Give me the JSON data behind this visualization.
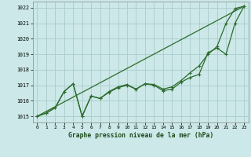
{
  "title": "Graphe pression niveau de la mer (hPa)",
  "bg_color": "#cce8e8",
  "grid_color": "#aacccc",
  "line_color": "#2d6b2d",
  "xlim": [
    -0.5,
    23.5
  ],
  "ylim": [
    1014.6,
    1022.4
  ],
  "yticks": [
    1015,
    1016,
    1017,
    1018,
    1019,
    1020,
    1021,
    1022
  ],
  "xticks": [
    0,
    1,
    2,
    3,
    4,
    5,
    6,
    7,
    8,
    9,
    10,
    11,
    12,
    13,
    14,
    15,
    16,
    17,
    18,
    19,
    20,
    21,
    22,
    23
  ],
  "series1_x": [
    0,
    1,
    2,
    3,
    4,
    5,
    6,
    7,
    8,
    9,
    10,
    11,
    12,
    13,
    14,
    15,
    16,
    17,
    18,
    19,
    20,
    21,
    22,
    23
  ],
  "series1_y": [
    1015.0,
    1015.2,
    1015.55,
    1016.6,
    1017.1,
    1015.0,
    1016.3,
    1016.15,
    1016.6,
    1016.9,
    1017.05,
    1016.75,
    1017.1,
    1017.05,
    1016.75,
    1016.9,
    1017.3,
    1017.8,
    1018.25,
    1019.0,
    1019.5,
    1021.0,
    1021.95,
    1022.1
  ],
  "series2_x": [
    0,
    1,
    2,
    3,
    4,
    5,
    6,
    7,
    8,
    9,
    10,
    11,
    12,
    13,
    14,
    15,
    16,
    17,
    18,
    19,
    20,
    21,
    22,
    23
  ],
  "series2_y": [
    1015.0,
    1015.2,
    1015.55,
    1016.6,
    1017.1,
    1015.0,
    1016.3,
    1016.15,
    1016.55,
    1016.85,
    1017.0,
    1016.75,
    1017.1,
    1017.0,
    1016.65,
    1016.75,
    1017.2,
    1017.5,
    1017.7,
    1019.1,
    1019.4,
    1019.0,
    1021.0,
    1022.1
  ],
  "series3_x": [
    0,
    23
  ],
  "series3_y": [
    1015.0,
    1022.1
  ]
}
